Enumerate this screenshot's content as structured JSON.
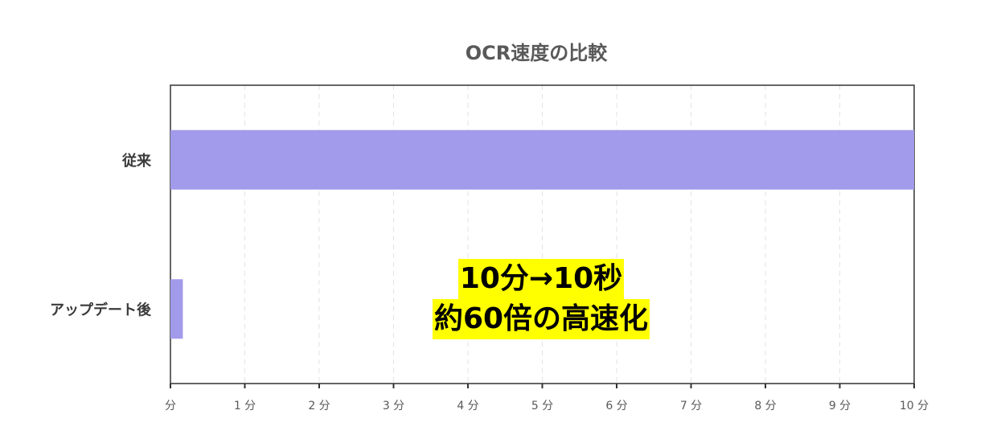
{
  "chart_data": {
    "type": "bar",
    "orientation": "horizontal",
    "title": "OCR速度の比較",
    "categories": [
      "従来",
      "アップデート後"
    ],
    "values": [
      10,
      0.1667
    ],
    "value_unit": "分",
    "xlim": [
      0,
      10
    ],
    "x_ticks": [
      0,
      1,
      2,
      3,
      4,
      5,
      6,
      7,
      8,
      9,
      10
    ],
    "x_tick_labels": [
      "分",
      "1 分",
      "2 分",
      "3 分",
      "4 分",
      "5 分",
      "6 分",
      "7 分",
      "8 分",
      "9 分",
      "10 分"
    ],
    "xlabel": "",
    "ylabel": "",
    "grid": "vertical dashed",
    "bar_color": "#a29aea",
    "annotation": {
      "lines": [
        "10分→10秒",
        "約60倍の高速化"
      ],
      "highlight_color": "#ffff00"
    }
  }
}
